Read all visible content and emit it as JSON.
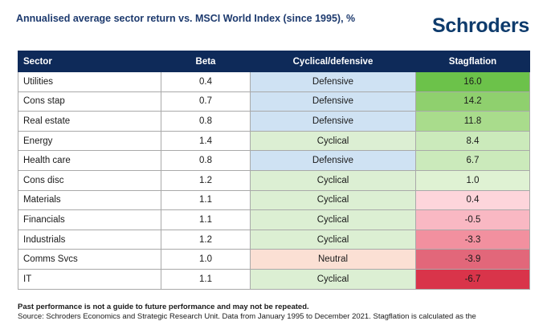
{
  "header": {
    "title": "Annualised average sector return vs. MSCI World Index (since 1995), %",
    "logo": "Schroders"
  },
  "chart_data": {
    "type": "table",
    "columns": [
      "Sector",
      "Beta",
      "Cyclical/defensive",
      "Stagflation"
    ],
    "rows": [
      {
        "sector": "Utilities",
        "beta": "0.4",
        "type": "Defensive",
        "stagflation": "16.0",
        "value": 16.0
      },
      {
        "sector": "Cons stap",
        "beta": "0.7",
        "type": "Defensive",
        "stagflation": "14.2",
        "value": 14.2
      },
      {
        "sector": "Real estate",
        "beta": "0.8",
        "type": "Defensive",
        "stagflation": "11.8",
        "value": 11.8
      },
      {
        "sector": "Energy",
        "beta": "1.4",
        "type": "Cyclical",
        "stagflation": "8.4",
        "value": 8.4
      },
      {
        "sector": "Health care",
        "beta": "0.8",
        "type": "Defensive",
        "stagflation": "6.7",
        "value": 6.7
      },
      {
        "sector": "Cons disc",
        "beta": "1.2",
        "type": "Cyclical",
        "stagflation": "1.0",
        "value": 1.0
      },
      {
        "sector": "Materials",
        "beta": "1.1",
        "type": "Cyclical",
        "stagflation": "0.4",
        "value": 0.4
      },
      {
        "sector": "Financials",
        "beta": "1.1",
        "type": "Cyclical",
        "stagflation": "-0.5",
        "value": -0.5
      },
      {
        "sector": "Industrials",
        "beta": "1.2",
        "type": "Cyclical",
        "stagflation": "-3.3",
        "value": -3.3
      },
      {
        "sector": "Comms Svcs",
        "beta": "1.0",
        "type": "Neutral",
        "stagflation": "-3.9",
        "value": -3.9
      },
      {
        "sector": "IT",
        "beta": "1.1",
        "type": "Cyclical",
        "stagflation": "-6.7",
        "value": -6.7
      }
    ]
  },
  "colors": {
    "header_bg": "#0e2a59",
    "defensive": "#cfe2f3",
    "cyclical": "#dcefd3",
    "neutral": "#fbe0d4",
    "positive": [
      "#dff2d3",
      "#cbeabb",
      "#a9dc8c",
      "#8fd06e",
      "#6cc24a"
    ],
    "negative": [
      "#fdd5db",
      "#f9b8c3",
      "#f2909f",
      "#d9344a"
    ]
  },
  "footer": {
    "disclaimer": "Past performance is not a guide to future performance and may not be repeated.",
    "source": "Source: Schroders Economics and Strategic Research Unit. Data from January 1995 to December 2021. Stagflation is calculated as the"
  }
}
